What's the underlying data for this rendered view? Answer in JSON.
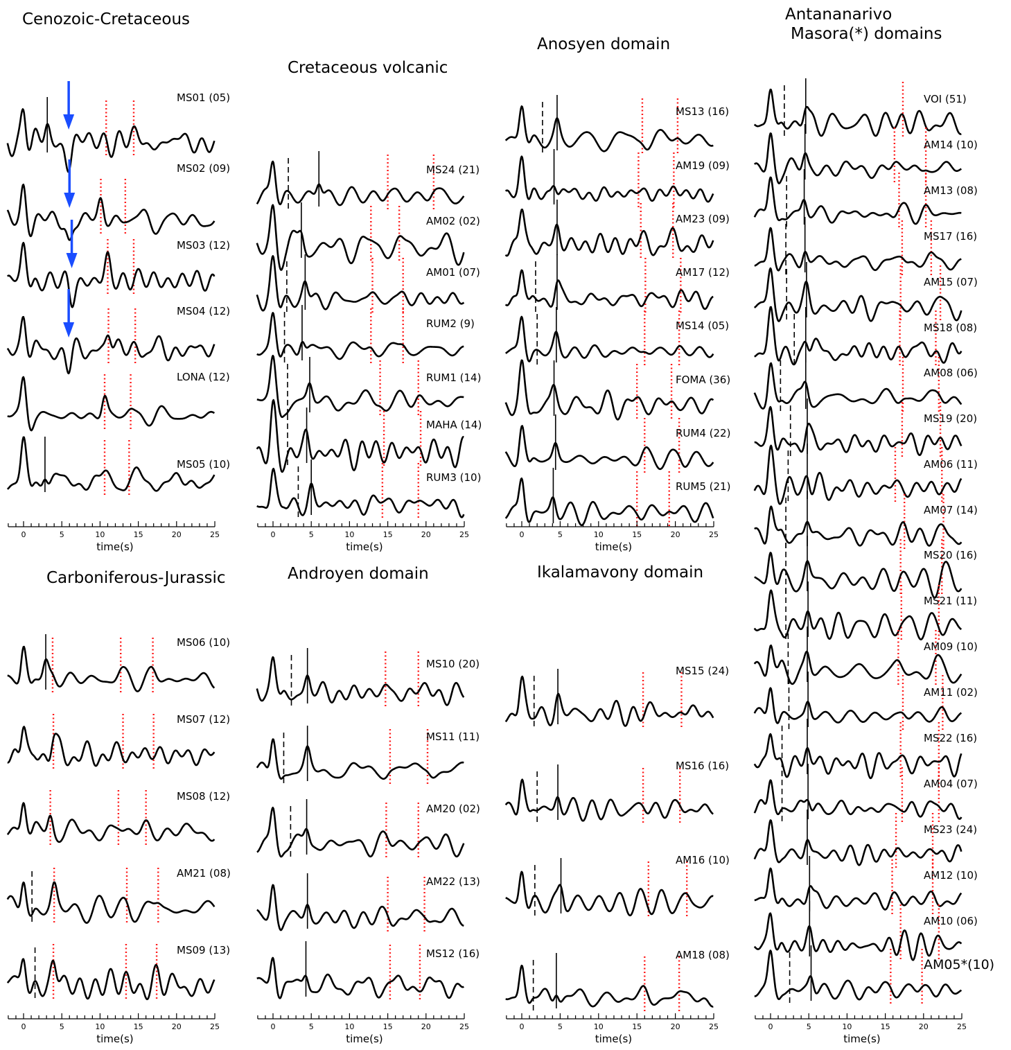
{
  "chart_data": {
    "type": "line",
    "description_note": "",
    "x_axis": {
      "label": "time(s)",
      "range": [
        -2,
        25
      ],
      "ticks": [
        0,
        5,
        10,
        15,
        20,
        25
      ]
    },
    "marker_color": "#ff0000",
    "arrow_color": "#1a4dff",
    "panels": [
      {
        "title": "Cenozoic-Cretaceous",
        "stations": [
          {
            "label": "MS01 (05)",
            "red": [
              10.8,
              14.4
            ],
            "solid": [
              3.1
            ],
            "dash": [],
            "arrow": 5.9
          },
          {
            "label": "MS02 (09)",
            "red": [
              10.1,
              13.3
            ],
            "solid": [],
            "dash": [],
            "arrow": 6.0
          },
          {
            "label": "MS03 (12)",
            "red": [
              11.0,
              14.4
            ],
            "solid": [],
            "dash": [],
            "arrow": 6.3
          },
          {
            "label": "MS04 (12)",
            "red": [
              11.1,
              14.6
            ],
            "solid": [],
            "dash": [],
            "arrow": 5.9
          },
          {
            "label": "LONA (12)",
            "red": [
              10.6,
              14.0
            ],
            "solid": [],
            "dash": [],
            "arrow": null
          },
          {
            "label": "MS05 (10)",
            "red": [
              10.6,
              13.8
            ],
            "solid": [
              2.8
            ],
            "dash": [],
            "arrow": null
          }
        ]
      },
      {
        "title": "Cretaceous volcanic",
        "stations": [
          {
            "label": "MS24 (21)",
            "red": [
              15.0,
              21.0
            ],
            "solid": [
              6.0
            ],
            "dash": [
              2.0
            ],
            "arrow": null
          },
          {
            "label": "AM02 (02)",
            "red": [
              12.8,
              16.5
            ],
            "solid": [
              3.7
            ],
            "dash": [],
            "arrow": null
          },
          {
            "label": "AM01 (07)",
            "red": [
              13.0,
              17.0
            ],
            "solid": [
              4.2
            ],
            "dash": [
              1.8
            ],
            "arrow": null
          },
          {
            "label": "RUM2 (9)",
            "red": [
              12.8,
              17.0
            ],
            "solid": [
              3.8
            ],
            "dash": [
              1.5
            ],
            "arrow": null
          },
          {
            "label": "RUM1 (14)",
            "red": [
              14.0,
              19.0
            ],
            "solid": [
              4.8
            ],
            "dash": [
              1.9
            ],
            "arrow": null
          },
          {
            "label": "MAHA (14)",
            "red": [
              14.5,
              19.3
            ],
            "solid": [
              4.4
            ],
            "dash": [
              1.9
            ],
            "arrow": null
          },
          {
            "label": "RUM3 (10)",
            "red": [
              14.3,
              19.0
            ],
            "solid": [
              5.0
            ],
            "dash": [
              3.3
            ],
            "arrow": null
          }
        ]
      },
      {
        "title": "Anosyen domain",
        "stations": [
          {
            "label": "MS13 (16)",
            "red": [
              15.7,
              20.3
            ],
            "solid": [
              4.6
            ],
            "dash": [
              2.7
            ],
            "arrow": null
          },
          {
            "label": "AM19 (09)",
            "red": [
              15.2,
              19.8
            ],
            "solid": [
              4.2
            ],
            "dash": [],
            "arrow": null
          },
          {
            "label": "AM23 (09)",
            "red": [
              15.5,
              19.7
            ],
            "solid": [
              4.6
            ],
            "dash": [],
            "arrow": null
          },
          {
            "label": "AM17 (12)",
            "red": [
              16.1,
              20.7
            ],
            "solid": [
              4.6
            ],
            "dash": [
              1.8
            ],
            "arrow": null
          },
          {
            "label": "MS14 (05)",
            "red": [
              16.0,
              20.5
            ],
            "solid": [
              4.5
            ],
            "dash": [
              2.0
            ],
            "arrow": null
          },
          {
            "label": "FOMA (36)",
            "red": [
              15.0,
              19.5
            ],
            "solid": [
              4.2
            ],
            "dash": [],
            "arrow": null
          },
          {
            "label": "RUM4 (22)",
            "red": [
              16.0,
              20.5
            ],
            "solid": [
              4.4
            ],
            "dash": [],
            "arrow": null
          },
          {
            "label": "RUM5 (21)",
            "red": [
              15.0,
              19.2
            ],
            "solid": [
              4.1
            ],
            "dash": [],
            "arrow": null
          }
        ]
      },
      {
        "title": "Antananarivo\nMasora(*) domains",
        "stations": [
          {
            "label": "VOI (51)",
            "red": [
              17.3
            ],
            "solid": [
              4.6
            ],
            "dash": [
              1.8
            ],
            "arrow": null
          },
          {
            "label": "AM14 (10)",
            "red": [
              16.2,
              20.3
            ],
            "solid": [
              4.5
            ],
            "dash": [],
            "arrow": null
          },
          {
            "label": "AM13 (08)",
            "red": [
              16.8,
              20.3
            ],
            "solid": [
              4.4
            ],
            "dash": [
              2.1
            ],
            "arrow": null
          },
          {
            "label": "MS17 (16)",
            "red": [
              17.2,
              21.0
            ],
            "solid": [
              4.5
            ],
            "dash": [
              2.0
            ],
            "arrow": null
          },
          {
            "label": "AM15 (07)",
            "red": [
              17.0,
              22.2
            ],
            "solid": [
              4.7
            ],
            "dash": [
              2.1
            ],
            "arrow": null
          },
          {
            "label": "MS18 (08)",
            "red": [
              16.9,
              21.6
            ],
            "solid": [
              4.6
            ],
            "dash": [
              3.1
            ],
            "arrow": null
          },
          {
            "label": "AM08 (06)",
            "red": [
              17.3,
              22.0
            ],
            "solid": [
              4.6
            ],
            "dash": [
              1.3
            ],
            "arrow": null
          },
          {
            "label": "MS19 (20)",
            "red": [
              17.2,
              22.2
            ],
            "solid": [
              4.8
            ],
            "dash": [
              2.6
            ],
            "arrow": null
          },
          {
            "label": "AM06 (11)",
            "red": [
              16.3,
              22.4
            ],
            "solid": [
              4.8
            ],
            "dash": [
              2.3
            ],
            "arrow": null
          },
          {
            "label": "AM07 (14)",
            "red": [
              17.5,
              22.6
            ],
            "solid": [
              4.8
            ],
            "dash": [
              2.0
            ],
            "arrow": null
          },
          {
            "label": "MS20 (16)",
            "red": [
              17.0,
              22.4
            ],
            "solid": [
              4.8
            ],
            "dash": [
              2.0
            ],
            "arrow": null
          },
          {
            "label": "MS21 (11)",
            "red": [
              17.1,
              22.0
            ],
            "solid": [
              4.9
            ],
            "dash": [
              2.0
            ],
            "arrow": null
          },
          {
            "label": "AM09 (10)",
            "red": [
              16.7,
              21.6
            ],
            "solid": [
              4.8
            ],
            "dash": [
              2.3
            ],
            "arrow": null
          },
          {
            "label": "AM11 (02)",
            "red": [
              17.3,
              22.5
            ],
            "solid": [
              4.9
            ],
            "dash": [
              2.4
            ],
            "arrow": null
          },
          {
            "label": "MS22 (16)",
            "red": [
              17.0,
              22.0
            ],
            "solid": [
              4.8
            ],
            "dash": [
              1.5
            ],
            "arrow": null
          },
          {
            "label": "AM04 (07)",
            "red": [
              17.2,
              22.0
            ],
            "solid": [
              4.9
            ],
            "dash": [
              1.5
            ],
            "arrow": null
          },
          {
            "label": "MS23 (24)",
            "red": [
              16.4,
              21.2
            ],
            "solid": [
              4.8
            ],
            "dash": [],
            "arrow": null
          },
          {
            "label": "AM12 (10)",
            "red": [
              15.9,
              21.2
            ],
            "solid": [
              5.1
            ],
            "dash": [],
            "arrow": null
          },
          {
            "label": "AM10 (06)",
            "red": [
              17.0,
              22.0
            ],
            "solid": [
              5.1
            ],
            "dash": [],
            "arrow": null
          },
          {
            "label": "AM05*(10)",
            "red": [
              15.7,
              19.8
            ],
            "solid": [
              5.3
            ],
            "dash": [
              2.5
            ],
            "arrow": null
          }
        ]
      },
      {
        "title": "Carboniferous-Jurassic",
        "stations": [
          {
            "label": "MS06 (10)",
            "red": [
              3.8,
              12.7,
              16.9
            ],
            "solid": [
              2.9
            ],
            "dash": [],
            "arrow": null
          },
          {
            "label": "MS07 (12)",
            "red": [
              3.9,
              13.0,
              17.0
            ],
            "solid": [],
            "dash": [],
            "arrow": null
          },
          {
            "label": "MS08 (12)",
            "red": [
              3.5,
              12.4,
              16.0
            ],
            "solid": [],
            "dash": [],
            "arrow": null
          },
          {
            "label": "AM21 (08)",
            "red": [
              4.0,
              13.5,
              17.6
            ],
            "solid": [],
            "dash": [
              1.1
            ],
            "arrow": null
          },
          {
            "label": "MS09 (13)",
            "red": [
              3.9,
              13.4,
              17.4
            ],
            "solid": [],
            "dash": [
              1.5
            ],
            "arrow": null
          }
        ]
      },
      {
        "title": "Androyen domain",
        "stations": [
          {
            "label": "MS10 (20)",
            "red": [
              14.7,
              19.0
            ],
            "solid": [
              4.5
            ],
            "dash": [
              2.4
            ],
            "arrow": null
          },
          {
            "label": "MS11 (11)",
            "red": [
              15.3,
              20.2
            ],
            "solid": [
              4.5
            ],
            "dash": [
              1.4
            ],
            "arrow": null
          },
          {
            "label": "AM20 (02)",
            "red": [
              14.8,
              19.0
            ],
            "solid": [
              4.4
            ],
            "dash": [
              2.3
            ],
            "arrow": null
          },
          {
            "label": "AM22 (13)",
            "red": [
              15.0,
              19.8
            ],
            "solid": [
              4.5
            ],
            "dash": [],
            "arrow": null
          },
          {
            "label": "MS12 (16)",
            "red": [
              15.3,
              19.2
            ],
            "solid": [
              4.3
            ],
            "dash": [],
            "arrow": null
          }
        ]
      },
      {
        "title": "Ikalamavony domain",
        "stations": [
          {
            "label": "MS15 (24)",
            "red": [
              15.8,
              20.8
            ],
            "solid": [
              4.7
            ],
            "dash": [
              1.6
            ],
            "arrow": null
          },
          {
            "label": "MS16 (16)",
            "red": [
              15.8,
              20.6
            ],
            "solid": [
              4.7
            ],
            "dash": [
              2.0
            ],
            "arrow": null
          },
          {
            "label": "AM16 (10)",
            "red": [
              16.5,
              21.5
            ],
            "solid": [
              5.1
            ],
            "dash": [
              1.7
            ],
            "arrow": null
          },
          {
            "label": "AM18 (08)",
            "red": [
              16.0,
              20.5
            ],
            "solid": [
              4.5
            ],
            "dash": [
              1.5
            ],
            "arrow": null
          }
        ]
      }
    ]
  }
}
